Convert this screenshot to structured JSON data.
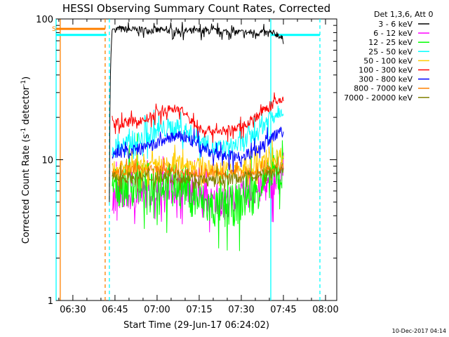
{
  "chart_data": {
    "type": "line",
    "title": "HESSI Observing Summary Count Rates, Corrected",
    "xlabel": "Start Time (29-Jun-17 06:24:02)",
    "ylabel": "Corrected Count Rate (s⁻¹ detector⁻¹)",
    "ylabel_main": "Corrected Count Rate (s",
    "ylabel_exp1": "-1",
    "ylabel_mid": " detector",
    "ylabel_exp2": "-1",
    "ylabel_end": ")",
    "yscale": "log",
    "ylim": [
      1,
      100
    ],
    "xlim": [
      "06:24:02",
      "08:04:00"
    ],
    "x_ticks": [
      "06:30",
      "06:45",
      "07:00",
      "07:15",
      "07:30",
      "07:45",
      "08:00"
    ],
    "y_ticks": [
      "1",
      "10",
      "100"
    ],
    "legend_title": "Det 1,3,6, Att 0",
    "legend_position": "right",
    "timestamp": "10-Dec-2017 04:14",
    "flag_label": "S",
    "series": [
      {
        "name": "3 - 6 keV",
        "color": "#000000",
        "x": [
          "06:43:00",
          "06:43:30",
          "06:44:00",
          "06:50:00",
          "07:00:00",
          "07:10:00",
          "07:20:00",
          "07:30:00",
          "07:35:00",
          "07:40:00",
          "07:43:00",
          "07:45:00"
        ],
        "values": [
          5,
          50,
          85,
          84,
          83,
          82,
          82,
          80,
          80,
          79,
          78,
          70
        ]
      },
      {
        "name": "6 - 12 keV",
        "color": "#ff00ff",
        "x": [
          "06:44:00",
          "06:50:00",
          "07:00:00",
          "07:10:00",
          "07:15:00",
          "07:20:00",
          "07:25:00",
          "07:30:00",
          "07:35:00",
          "07:40:00",
          "07:45:00"
        ],
        "values": [
          5.5,
          5.5,
          6,
          6.5,
          5.5,
          5,
          5,
          5.5,
          6,
          6.5,
          7
        ]
      },
      {
        "name": "12 - 25 keV",
        "color": "#00ff00",
        "x": [
          "06:44:00",
          "06:50:00",
          "07:00:00",
          "07:10:00",
          "07:15:00",
          "07:20:00",
          "07:25:00",
          "07:30:00",
          "07:35:00",
          "07:40:00",
          "07:45:00"
        ],
        "values": [
          6.5,
          6.5,
          7,
          6.5,
          5,
          4.5,
          4.5,
          5,
          6,
          7.5,
          8
        ]
      },
      {
        "name": "25 - 50 keV",
        "color": "#00ffff",
        "x": [
          "06:44:00",
          "06:50:00",
          "06:55:00",
          "07:00:00",
          "07:05:00",
          "07:10:00",
          "07:15:00",
          "07:20:00",
          "07:25:00",
          "07:30:00",
          "07:35:00",
          "07:40:00",
          "07:45:00"
        ],
        "values": [
          12,
          13,
          14,
          16,
          17,
          16,
          14,
          12,
          12,
          13,
          15,
          20,
          24
        ]
      },
      {
        "name": "50 - 100 keV",
        "color": "#ffcc00",
        "x": [
          "06:44:00",
          "06:50:00",
          "07:00:00",
          "07:10:00",
          "07:15:00",
          "07:20:00",
          "07:25:00",
          "07:30:00",
          "07:35:00",
          "07:40:00",
          "07:45:00"
        ],
        "values": [
          8.5,
          8.5,
          9,
          9.5,
          9,
          8.5,
          8.5,
          8.5,
          9,
          10,
          11
        ]
      },
      {
        "name": "100 - 300 keV",
        "color": "#ff0000",
        "x": [
          "06:44:00",
          "06:50:00",
          "06:55:00",
          "07:00:00",
          "07:05:00",
          "07:08:00",
          "07:12:00",
          "07:15:00",
          "07:20:00",
          "07:25:00",
          "07:30:00",
          "07:35:00",
          "07:40:00",
          "07:45:00"
        ],
        "values": [
          18,
          18.5,
          19,
          21,
          23,
          23,
          19,
          16.5,
          16,
          16,
          17,
          20,
          24,
          27
        ]
      },
      {
        "name": "300 - 800 keV",
        "color": "#0000ff",
        "x": [
          "06:44:00",
          "06:50:00",
          "06:55:00",
          "07:00:00",
          "07:05:00",
          "07:10:00",
          "07:15:00",
          "07:20:00",
          "07:25:00",
          "07:30:00",
          "07:35:00",
          "07:40:00",
          "07:45:00"
        ],
        "values": [
          11,
          11.5,
          12,
          13,
          14.5,
          14.5,
          12.5,
          11,
          10.5,
          10.5,
          11.5,
          14,
          16
        ]
      },
      {
        "name": "800 - 7000 keV",
        "color": "#ff8000",
        "x": [
          "06:44:00",
          "06:50:00",
          "07:00:00",
          "07:10:00",
          "07:20:00",
          "07:30:00",
          "07:35:00",
          "07:40:00",
          "07:45:00"
        ],
        "values": [
          8,
          8.5,
          8.5,
          8,
          8,
          8,
          8,
          8.5,
          9
        ]
      },
      {
        "name": "7000 - 20000 keV",
        "color": "#808000",
        "x": [
          "06:44:00",
          "06:50:00",
          "07:00:00",
          "07:10:00",
          "07:20:00",
          "07:30:00",
          "07:40:00",
          "07:45:00"
        ],
        "values": [
          7.5,
          7.5,
          7.5,
          7.5,
          7,
          7.5,
          8,
          8.5
        ]
      }
    ],
    "markers": [
      {
        "kind": "solid-line",
        "color": "#00ffff",
        "at": "06:24:02"
      },
      {
        "kind": "solid-line",
        "color": "#ff8000",
        "at": "06:25:30"
      },
      {
        "kind": "dashed-line",
        "color": "#ff8000",
        "at": "06:41:30"
      },
      {
        "kind": "dashed-line",
        "color": "#00ffff",
        "at": "06:43:00"
      },
      {
        "kind": "solid-line",
        "color": "#00ffff",
        "at": "07:40:30"
      },
      {
        "kind": "dashed-line",
        "color": "#00ffff",
        "at": "07:58:00"
      }
    ],
    "bars": [
      {
        "kind": "saa",
        "color": "#ff8000",
        "from": "06:24:02",
        "to": "06:41:30",
        "level": 85
      },
      {
        "kind": "night",
        "color": "#00ffff",
        "from": "06:24:02",
        "to": "06:42:00",
        "level": 77
      },
      {
        "kind": "night",
        "color": "#00ffff",
        "from": "07:40:30",
        "to": "07:58:00",
        "level": 77
      }
    ]
  }
}
